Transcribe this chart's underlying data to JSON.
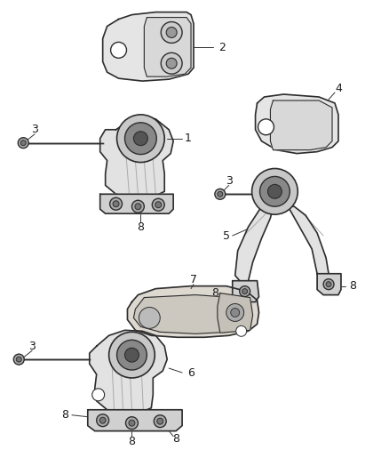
{
  "background_color": "#ffffff",
  "line_color": "#2d2d2d",
  "label_fontsize": 9,
  "fig_width": 4.38,
  "fig_height": 5.33,
  "dpi": 100
}
